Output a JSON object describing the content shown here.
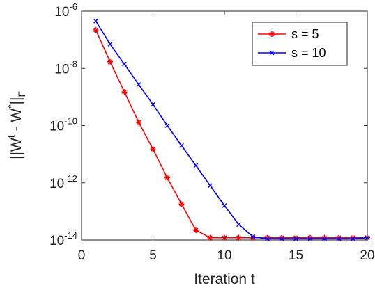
{
  "chart_data": {
    "type": "line",
    "xlabel": "Iteration t",
    "ylabel": {
      "main": "||W",
      "sup1": "t",
      "mid": " - W",
      "sup2": "*",
      "close": "||",
      "sub": "F"
    },
    "xlim": [
      0,
      20
    ],
    "ylim": [
      1e-14,
      1e-06
    ],
    "yscale": "log",
    "grid": false,
    "legend_position": "top-right",
    "x_ticks": [
      "0",
      "5",
      "10",
      "15",
      "20"
    ],
    "y_ticks": [
      {
        "base": "10",
        "exp": "-14"
      },
      {
        "base": "10",
        "exp": "-12"
      },
      {
        "base": "10",
        "exp": "-10"
      },
      {
        "base": "10",
        "exp": "-8"
      },
      {
        "base": "10",
        "exp": "-6"
      }
    ],
    "series": [
      {
        "name": "s = 5",
        "color": "#ff0000",
        "marker": "asterisk",
        "x": [
          1,
          2,
          3,
          4,
          5,
          6,
          7,
          8,
          9,
          10,
          11,
          12,
          13,
          14,
          15,
          16,
          17,
          18,
          19,
          20
        ],
        "y": [
          2.2e-07,
          1.7e-08,
          1.5e-09,
          1.3e-10,
          1.5e-11,
          1.5e-12,
          1.8e-13,
          2.2e-14,
          1.2e-14,
          1.2e-14,
          1.2e-14,
          1.2e-14,
          1.2e-14,
          1.2e-14,
          1.2e-14,
          1.2e-14,
          1.2e-14,
          1.2e-14,
          1.2e-14,
          1.2e-14
        ]
      },
      {
        "name": "s = 10",
        "color": "#0000ff",
        "marker": "x",
        "x": [
          1,
          2,
          3,
          4,
          5,
          6,
          7,
          8,
          9,
          10,
          11,
          12,
          13,
          14,
          15,
          16,
          17,
          18,
          19,
          20
        ],
        "y": [
          4.5e-07,
          7e-08,
          1.4e-08,
          2.7e-09,
          5.5e-10,
          1e-10,
          2e-11,
          4e-12,
          8e-13,
          1.6e-13,
          3.5e-14,
          1.3e-14,
          1.1e-14,
          1.1e-14,
          1.1e-14,
          1.1e-14,
          1.1e-14,
          1.1e-14,
          1.1e-14,
          1.2e-14
        ]
      }
    ]
  }
}
